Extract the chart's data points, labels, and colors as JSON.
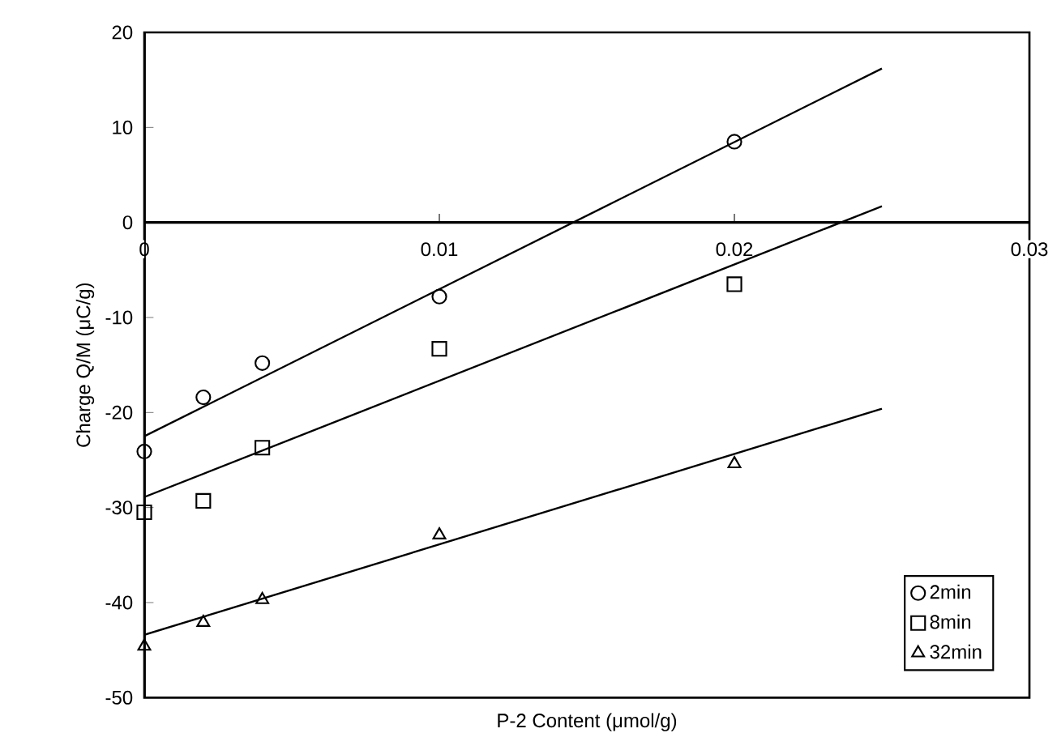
{
  "chart_data": {
    "type": "scatter",
    "xlabel": "P-2 Content (μmol/g)",
    "ylabel": "Charge Q/M (μC/g)",
    "xlim": [
      0,
      0.03
    ],
    "ylim": [
      -50,
      20
    ],
    "xticks": [
      0,
      0.01,
      0.02,
      0.03
    ],
    "yticks": [
      -50,
      -40,
      -30,
      -20,
      -10,
      0,
      10,
      20
    ],
    "grid": false,
    "legend": "bottom right",
    "series": [
      {
        "name": "2min",
        "marker": "circle",
        "color": "#000000",
        "x": [
          0,
          0.002,
          0.004,
          0.01,
          0.02
        ],
        "values": [
          -24.1,
          -18.4,
          -14.8,
          -7.8,
          8.5
        ]
      },
      {
        "name": "8min",
        "marker": "square",
        "color": "#000000",
        "x": [
          0,
          0.002,
          0.004,
          0.01,
          0.02
        ],
        "values": [
          -30.5,
          -29.3,
          -23.7,
          -13.3,
          -6.5
        ]
      },
      {
        "name": "32min",
        "marker": "triangle",
        "color": "#000000",
        "x": [
          0,
          0.002,
          0.004,
          0.01,
          0.02
        ],
        "values": [
          -44.6,
          -42.1,
          -39.7,
          -32.9,
          -25.4
        ]
      },
      {
        "type": "line",
        "marker": "none",
        "line_style": "solid",
        "color": "#000000",
        "x": [
          0,
          0.025
        ],
        "values": [
          -22.5,
          16.2
        ]
      },
      {
        "type": "line",
        "marker": "none",
        "line_style": "solid",
        "color": "#000000",
        "x": [
          0,
          0.025
        ],
        "values": [
          -28.9,
          1.7
        ]
      },
      {
        "type": "line",
        "marker": "none",
        "line_style": "solid",
        "color": "#000000",
        "x": [
          0,
          0.025
        ],
        "values": [
          -43.4,
          -19.6
        ]
      }
    ]
  }
}
